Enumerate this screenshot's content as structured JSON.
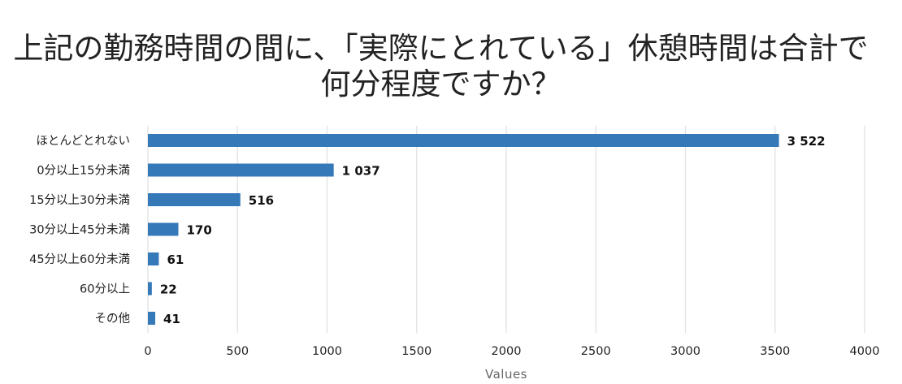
{
  "chart_data": {
    "type": "bar",
    "orientation": "horizontal",
    "title_line1": "上記の勤務時間の間に、「実際にとれている」休憩時間は合計で",
    "title_line2": "何分程度ですか？",
    "categories": [
      "ほとんどとれない",
      "0分以上15分未満",
      "15分以上30分未満",
      "30分以上45分未満",
      "45分以上60分未満",
      "60分以上",
      "その他"
    ],
    "values": [
      3522,
      1037,
      516,
      170,
      61,
      22,
      41
    ],
    "value_labels": [
      "3 522",
      "1 037",
      "516",
      "170",
      "61",
      "22",
      "41"
    ],
    "xlabel": "Values",
    "xlim": [
      0,
      4000
    ],
    "xticks": [
      "0",
      "500",
      "1000",
      "1500",
      "2000",
      "2500",
      "3000",
      "3500",
      "4000"
    ],
    "grid": "vertical",
    "bar_color": "#3579b8",
    "grid_color": "#e2e2e2"
  }
}
